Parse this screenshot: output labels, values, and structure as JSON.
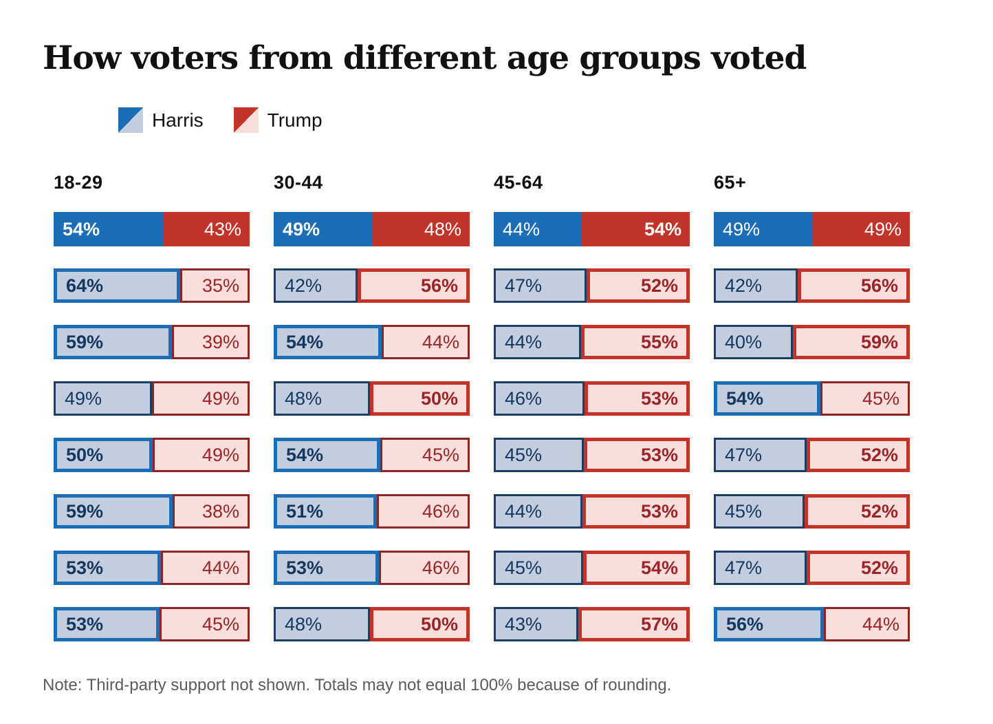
{
  "title": "How voters from different age groups voted",
  "legend": {
    "harris_label": "Harris",
    "trump_label": "Trump"
  },
  "note": "Note: Third-party support not shown. Totals may not equal 100% because of rounding.",
  "colors": {
    "harris_solid": "#1b6db5",
    "trump_solid": "#c23429",
    "harris_light_fill": "#c2cddf",
    "trump_light_fill": "#f9dedb",
    "harris_dark_border": "#1d3e63",
    "trump_dark_border": "#8e2426",
    "harris_text": "#14375d",
    "trump_text": "#9b2428",
    "title_text": "#111111",
    "note_text": "#5b5b5b"
  },
  "chart_data": {
    "type": "bar",
    "orientation": "horizontal-stacked",
    "title": "How voters from different age groups voted",
    "legend_entries": [
      "Harris",
      "Trump"
    ],
    "value_suffix": "%",
    "first_row_style": "solid",
    "bar_width_rule": "segment width proportional to value / (harris + trump)",
    "emphasis_rule": "higher value gets bold label and thick bright border; ties get neither",
    "groups": [
      {
        "label": "18-29",
        "rows": [
          {
            "harris": 54,
            "trump": 43
          },
          {
            "harris": 64,
            "trump": 35
          },
          {
            "harris": 59,
            "trump": 39
          },
          {
            "harris": 49,
            "trump": 49
          },
          {
            "harris": 50,
            "trump": 49
          },
          {
            "harris": 59,
            "trump": 38
          },
          {
            "harris": 53,
            "trump": 44
          },
          {
            "harris": 53,
            "trump": 45
          }
        ]
      },
      {
        "label": "30-44",
        "rows": [
          {
            "harris": 49,
            "trump": 48
          },
          {
            "harris": 42,
            "trump": 56
          },
          {
            "harris": 54,
            "trump": 44
          },
          {
            "harris": 48,
            "trump": 50
          },
          {
            "harris": 54,
            "trump": 45
          },
          {
            "harris": 51,
            "trump": 46
          },
          {
            "harris": 53,
            "trump": 46
          },
          {
            "harris": 48,
            "trump": 50
          }
        ]
      },
      {
        "label": "45-64",
        "rows": [
          {
            "harris": 44,
            "trump": 54
          },
          {
            "harris": 47,
            "trump": 52
          },
          {
            "harris": 44,
            "trump": 55
          },
          {
            "harris": 46,
            "trump": 53
          },
          {
            "harris": 45,
            "trump": 53
          },
          {
            "harris": 44,
            "trump": 53
          },
          {
            "harris": 45,
            "trump": 54
          },
          {
            "harris": 43,
            "trump": 57
          }
        ]
      },
      {
        "label": "65+",
        "rows": [
          {
            "harris": 49,
            "trump": 49
          },
          {
            "harris": 42,
            "trump": 56
          },
          {
            "harris": 40,
            "trump": 59
          },
          {
            "harris": 54,
            "trump": 45
          },
          {
            "harris": 47,
            "trump": 52
          },
          {
            "harris": 45,
            "trump": 52
          },
          {
            "harris": 47,
            "trump": 52
          },
          {
            "harris": 56,
            "trump": 44
          }
        ]
      }
    ]
  }
}
